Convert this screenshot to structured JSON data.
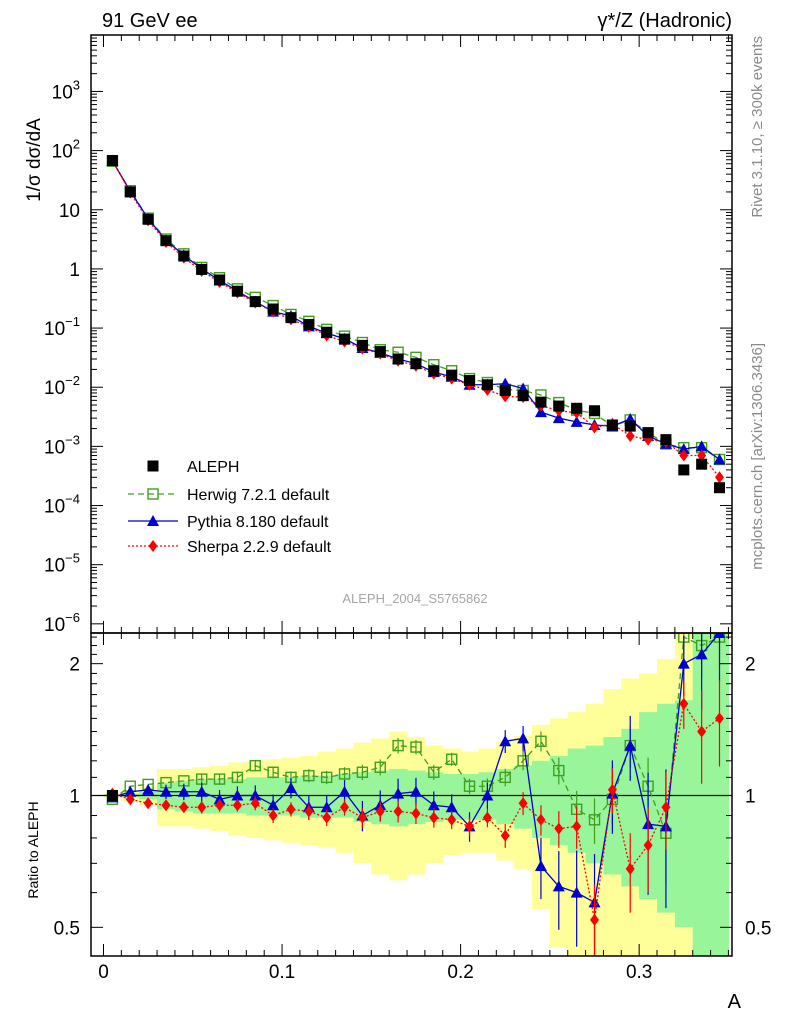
{
  "header": {
    "left": "91 GeV ee",
    "right": "γ*/Z (Hadronic)"
  },
  "side_labels": {
    "rivet": "Rivet 3.1.10, ≥ 300k events",
    "mcplots": "mcplots.cern.ch [arXiv:1306.3436]"
  },
  "watermark": "ALEPH_2004_S5765862",
  "colors": {
    "data": "#000000",
    "herwig": "#3f9f1f",
    "pythia": "#0000cc",
    "sherpa": "#ff0000",
    "band_yellow": "#ffff99",
    "band_green": "#99f599"
  },
  "chart_data": [
    {
      "panel": "main",
      "type": "scatter",
      "ylabel": "1/σ  dσ/dA",
      "yscale": "log",
      "ylim": [
        7e-07,
        9000
      ],
      "xlim": [
        -0.007,
        0.352
      ],
      "yticks": [
        {
          "value": 1e-06,
          "base": "10",
          "exp": "−6"
        },
        {
          "value": 1e-05,
          "base": "10",
          "exp": "−5"
        },
        {
          "value": 0.0001,
          "base": "10",
          "exp": "−4"
        },
        {
          "value": 0.001,
          "base": "10",
          "exp": "−3"
        },
        {
          "value": 0.01,
          "base": "10",
          "exp": "−2"
        },
        {
          "value": 0.1,
          "base": "10",
          "exp": "−1"
        },
        {
          "value": 1,
          "base": "1",
          "exp": ""
        },
        {
          "value": 10,
          "base": "10",
          "exp": ""
        },
        {
          "value": 100,
          "base": "10",
          "exp": "2"
        },
        {
          "value": 1000,
          "base": "10",
          "exp": "3"
        }
      ],
      "x": [
        0.005,
        0.015,
        0.025,
        0.035,
        0.045,
        0.055,
        0.065,
        0.075,
        0.085,
        0.095,
        0.105,
        0.115,
        0.125,
        0.135,
        0.145,
        0.155,
        0.165,
        0.175,
        0.185,
        0.195,
        0.205,
        0.215,
        0.225,
        0.235,
        0.245,
        0.255,
        0.265,
        0.275,
        0.285,
        0.295,
        0.305,
        0.315,
        0.325,
        0.335,
        0.345
      ],
      "series": [
        {
          "name": "ALEPH",
          "key": "data",
          "marker": "square",
          "values": [
            68,
            20,
            6.9,
            3.0,
            1.65,
            0.98,
            0.65,
            0.42,
            0.28,
            0.21,
            0.15,
            0.115,
            0.085,
            0.065,
            0.051,
            0.04,
            0.03,
            0.025,
            0.019,
            0.016,
            0.013,
            0.011,
            0.0088,
            0.0072,
            0.0056,
            0.0048,
            0.0044,
            0.004,
            0.0023,
            0.0022,
            0.0017,
            0.0013,
            0.0004,
            0.0005,
            0.0002
          ]
        },
        {
          "name": "Herwig 7.2.1 default",
          "key": "herwig",
          "marker": "open-square",
          "dash": "6,4",
          "values": [
            66,
            21,
            7.2,
            3.2,
            1.8,
            1.06,
            0.71,
            0.46,
            0.33,
            0.24,
            0.17,
            0.13,
            0.095,
            0.073,
            0.057,
            0.043,
            0.039,
            0.032,
            0.024,
            0.019,
            0.014,
            0.012,
            0.0092,
            0.0088,
            0.0074,
            0.0055,
            0.0041,
            0.0036,
            0.0022,
            0.0028,
            0.0017,
            0.0011,
            0.00095,
            0.00095,
            0.0006
          ]
        },
        {
          "name": "Pythia 8.180 default",
          "key": "pythia",
          "marker": "triangle",
          "values": [
            67,
            20.5,
            7.1,
            3.05,
            1.7,
            1.0,
            0.64,
            0.42,
            0.28,
            0.19,
            0.16,
            0.107,
            0.082,
            0.066,
            0.046,
            0.038,
            0.03,
            0.025,
            0.018,
            0.015,
            0.011,
            0.011,
            0.0115,
            0.0095,
            0.0038,
            0.003,
            0.0026,
            0.0023,
            0.0022,
            0.0029,
            0.0015,
            0.0011,
            0.0009,
            0.001,
            0.0006
          ]
        },
        {
          "name": "Sherpa 2.2.9 default",
          "key": "sherpa",
          "marker": "diamond",
          "dash": "2,2",
          "values": [
            68,
            19.5,
            6.6,
            2.85,
            1.55,
            0.92,
            0.6,
            0.4,
            0.27,
            0.19,
            0.14,
            0.105,
            0.075,
            0.059,
            0.045,
            0.037,
            0.028,
            0.023,
            0.017,
            0.014,
            0.011,
            0.009,
            0.007,
            0.0068,
            0.0049,
            0.004,
            0.0037,
            0.0021,
            0.0024,
            0.0015,
            0.0013,
            0.0012,
            0.0007,
            0.0007,
            0.0003
          ]
        }
      ],
      "legend": {
        "placement": "lower-left"
      }
    },
    {
      "panel": "ratio",
      "type": "line",
      "ylabel": "Ratio to ALEPH",
      "xlabel": "A",
      "yscale": "log",
      "ylim": [
        0.43,
        2.35
      ],
      "xlim": [
        -0.007,
        0.352
      ],
      "yticks_left": [
        {
          "value": 0.5,
          "label": "0.5"
        },
        {
          "value": 1,
          "label": "1"
        },
        {
          "value": 2,
          "label": "2"
        }
      ],
      "yticks_right": [
        {
          "value": 0.5,
          "label": "0.5"
        },
        {
          "value": 1,
          "label": "1"
        },
        {
          "value": 2,
          "label": "2"
        }
      ],
      "xticks": [
        {
          "value": 0,
          "label": "0"
        },
        {
          "value": 0.1,
          "label": "0.1"
        },
        {
          "value": 0.2,
          "label": "0.2"
        },
        {
          "value": 0.3,
          "label": "0.3"
        }
      ],
      "reference_line": 1,
      "x": [
        0.005,
        0.015,
        0.025,
        0.035,
        0.045,
        0.055,
        0.065,
        0.075,
        0.085,
        0.095,
        0.105,
        0.115,
        0.125,
        0.135,
        0.145,
        0.155,
        0.165,
        0.175,
        0.185,
        0.195,
        0.205,
        0.215,
        0.225,
        0.235,
        0.245,
        0.255,
        0.265,
        0.275,
        0.285,
        0.295,
        0.305,
        0.315,
        0.325,
        0.335,
        0.345
      ],
      "band_yellow": [
        [
          0.99,
          1.01
        ],
        [
          0.97,
          1.03
        ],
        [
          0.95,
          1.05
        ],
        [
          0.85,
          1.15
        ],
        [
          0.85,
          1.15
        ],
        [
          0.84,
          1.16
        ],
        [
          0.83,
          1.17
        ],
        [
          0.81,
          1.19
        ],
        [
          0.8,
          1.2
        ],
        [
          0.79,
          1.21
        ],
        [
          0.78,
          1.22
        ],
        [
          0.77,
          1.23
        ],
        [
          0.76,
          1.26
        ],
        [
          0.74,
          1.28
        ],
        [
          0.7,
          1.32
        ],
        [
          0.66,
          1.35
        ],
        [
          0.64,
          1.4
        ],
        [
          0.66,
          1.36
        ],
        [
          0.7,
          1.3
        ],
        [
          0.73,
          1.28
        ],
        [
          0.74,
          1.26
        ],
        [
          0.74,
          1.28
        ],
        [
          0.71,
          1.33
        ],
        [
          0.68,
          1.37
        ],
        [
          0.55,
          1.45
        ],
        [
          0.45,
          1.5
        ],
        [
          0.43,
          1.55
        ],
        [
          0.43,
          1.62
        ],
        [
          0.43,
          1.75
        ],
        [
          0.43,
          1.85
        ],
        [
          0.43,
          1.9
        ],
        [
          0.43,
          2.05
        ],
        [
          0.43,
          2.35
        ],
        [
          0.43,
          2.35
        ],
        [
          0.43,
          2.35
        ]
      ],
      "band_green": [
        [
          0.995,
          1.005
        ],
        [
          0.99,
          1.01
        ],
        [
          0.98,
          1.02
        ],
        [
          0.93,
          1.07
        ],
        [
          0.92,
          1.08
        ],
        [
          0.91,
          1.09
        ],
        [
          0.91,
          1.09
        ],
        [
          0.91,
          1.09
        ],
        [
          0.9,
          1.1
        ],
        [
          0.9,
          1.1
        ],
        [
          0.9,
          1.1
        ],
        [
          0.89,
          1.11
        ],
        [
          0.89,
          1.11
        ],
        [
          0.89,
          1.12
        ],
        [
          0.87,
          1.13
        ],
        [
          0.86,
          1.14
        ],
        [
          0.85,
          1.15
        ],
        [
          0.86,
          1.14
        ],
        [
          0.87,
          1.13
        ],
        [
          0.88,
          1.12
        ],
        [
          0.88,
          1.12
        ],
        [
          0.88,
          1.13
        ],
        [
          0.86,
          1.15
        ],
        [
          0.84,
          1.17
        ],
        [
          0.8,
          1.2
        ],
        [
          0.77,
          1.23
        ],
        [
          0.74,
          1.28
        ],
        [
          0.7,
          1.3
        ],
        [
          0.66,
          1.36
        ],
        [
          0.62,
          1.42
        ],
        [
          0.58,
          1.55
        ],
        [
          0.54,
          1.62
        ],
        [
          0.5,
          1.65
        ],
        [
          0.43,
          2.35
        ],
        [
          0.43,
          2.35
        ]
      ],
      "series": [
        {
          "name": "Herwig 7.2.1 default",
          "key": "herwig",
          "values": [
            0.98,
            1.05,
            1.06,
            1.07,
            1.08,
            1.09,
            1.09,
            1.1,
            1.17,
            1.13,
            1.1,
            1.11,
            1.1,
            1.12,
            1.13,
            1.16,
            1.3,
            1.29,
            1.13,
            1.21,
            1.05,
            1.05,
            1.1,
            1.2,
            1.33,
            1.14,
            0.93,
            0.88,
            0.98,
            1.3,
            1.05,
            0.82,
            2.3,
            2.2,
            2.3
          ]
        },
        {
          "name": "Pythia 8.180 default",
          "key": "pythia",
          "values": [
            0.99,
            1.02,
            1.03,
            1.02,
            1.02,
            1.02,
            0.98,
            1.0,
            1.0,
            0.95,
            1.04,
            0.94,
            0.94,
            1.02,
            0.9,
            0.95,
            1.01,
            1.02,
            0.95,
            0.94,
            0.85,
            1.0,
            1.33,
            1.35,
            0.69,
            0.62,
            0.6,
            0.57,
            1.01,
            1.3,
            0.86,
            0.85,
            2.0,
            2.1,
            2.35
          ]
        },
        {
          "name": "Sherpa 2.2.9 default",
          "key": "sherpa",
          "values": [
            1.01,
            0.98,
            0.96,
            0.95,
            0.94,
            0.94,
            0.95,
            0.95,
            0.96,
            0.9,
            0.93,
            0.92,
            0.89,
            0.94,
            0.89,
            0.92,
            0.92,
            0.91,
            0.89,
            0.88,
            0.85,
            0.89,
            0.81,
            0.96,
            0.88,
            0.84,
            0.85,
            0.52,
            1.03,
            0.68,
            0.77,
            0.94,
            1.62,
            1.4,
            1.5
          ]
        }
      ]
    }
  ]
}
